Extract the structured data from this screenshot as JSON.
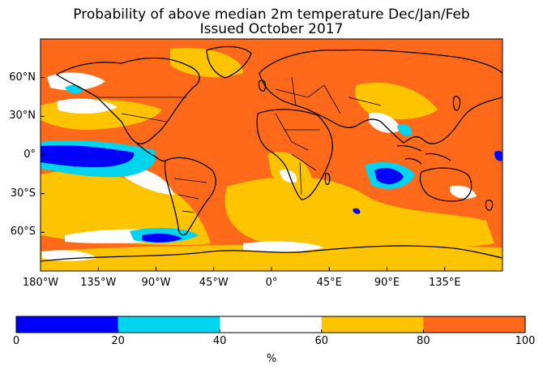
{
  "title": {
    "line1": "Probability of above median 2m temperature Dec/Jan/Feb",
    "line2": "Issued October 2017"
  },
  "map": {
    "projection": "plate-carree",
    "background_color": "#ff6a1a",
    "lat_ticks": [
      {
        "value": 60,
        "label": "60°N"
      },
      {
        "value": 30,
        "label": "30°N"
      },
      {
        "value": 0,
        "label": "0°"
      },
      {
        "value": -30,
        "label": "30°S"
      },
      {
        "value": -60,
        "label": "60°S"
      }
    ],
    "lon_ticks": [
      {
        "value": -180,
        "label": "180°W"
      },
      {
        "value": -135,
        "label": "135°W"
      },
      {
        "value": -90,
        "label": "90°W"
      },
      {
        "value": -45,
        "label": "45°W"
      },
      {
        "value": 0,
        "label": "0°"
      },
      {
        "value": 45,
        "label": "45°E"
      },
      {
        "value": 90,
        "label": "90°E"
      },
      {
        "value": 135,
        "label": "135°E"
      }
    ],
    "lon_range": [
      -180,
      180
    ],
    "lat_range": [
      -90,
      90
    ]
  },
  "colorbar": {
    "bins": [
      {
        "from": 0,
        "to": 20,
        "color": "#0000ff"
      },
      {
        "from": 20,
        "to": 40,
        "color": "#00d4ee"
      },
      {
        "from": 40,
        "to": 60,
        "color": "#ffffff"
      },
      {
        "from": 60,
        "to": 80,
        "color": "#ffc400"
      },
      {
        "from": 80,
        "to": 100,
        "color": "#ff6a1a"
      }
    ],
    "ticks": [
      "0",
      "20",
      "40",
      "60",
      "80",
      "100"
    ],
    "unit_label": "%"
  }
}
